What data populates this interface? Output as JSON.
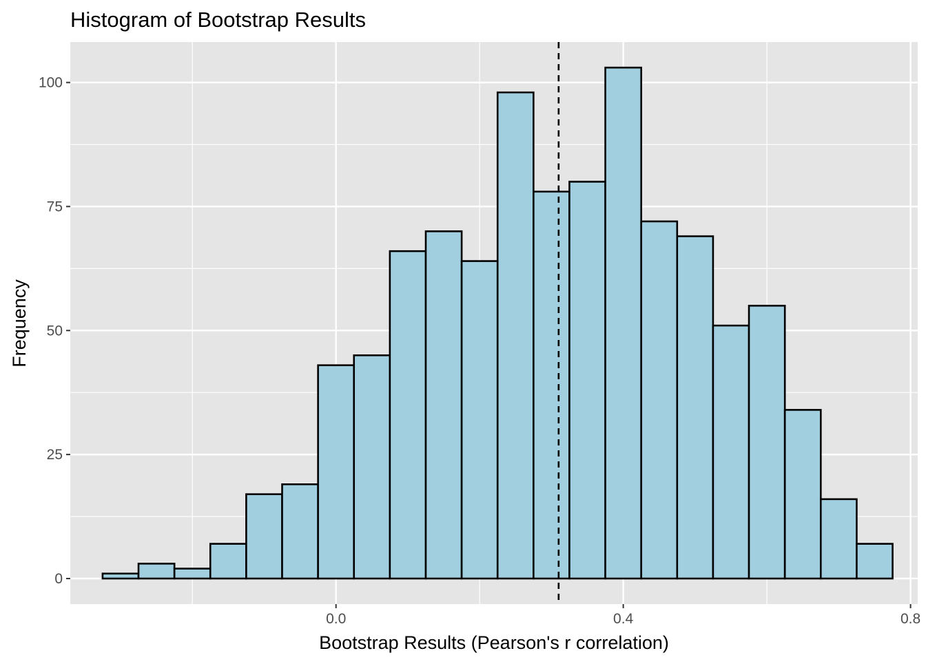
{
  "chart_data": {
    "type": "bar",
    "subtype": "histogram",
    "title": "Histogram of Bootstrap Results",
    "xlabel": "Bootstrap Results (Pearson's r correlation)",
    "ylabel": "Frequency",
    "bin_width": 0.05,
    "bins": [
      {
        "x_start": -0.325,
        "x_end": -0.275,
        "count": 1
      },
      {
        "x_start": -0.275,
        "x_end": -0.225,
        "count": 3
      },
      {
        "x_start": -0.225,
        "x_end": -0.175,
        "count": 2
      },
      {
        "x_start": -0.175,
        "x_end": -0.125,
        "count": 7
      },
      {
        "x_start": -0.125,
        "x_end": -0.075,
        "count": 17
      },
      {
        "x_start": -0.075,
        "x_end": -0.025,
        "count": 19
      },
      {
        "x_start": -0.025,
        "x_end": 0.025,
        "count": 43
      },
      {
        "x_start": 0.025,
        "x_end": 0.075,
        "count": 45
      },
      {
        "x_start": 0.075,
        "x_end": 0.125,
        "count": 66
      },
      {
        "x_start": 0.125,
        "x_end": 0.175,
        "count": 70
      },
      {
        "x_start": 0.175,
        "x_end": 0.225,
        "count": 64
      },
      {
        "x_start": 0.225,
        "x_end": 0.275,
        "count": 98
      },
      {
        "x_start": 0.275,
        "x_end": 0.325,
        "count": 78
      },
      {
        "x_start": 0.325,
        "x_end": 0.375,
        "count": 80
      },
      {
        "x_start": 0.375,
        "x_end": 0.425,
        "count": 103
      },
      {
        "x_start": 0.425,
        "x_end": 0.475,
        "count": 72
      },
      {
        "x_start": 0.475,
        "x_end": 0.525,
        "count": 69
      },
      {
        "x_start": 0.525,
        "x_end": 0.575,
        "count": 51
      },
      {
        "x_start": 0.575,
        "x_end": 0.625,
        "count": 55
      },
      {
        "x_start": 0.625,
        "x_end": 0.675,
        "count": 34
      },
      {
        "x_start": 0.675,
        "x_end": 0.725,
        "count": 16
      },
      {
        "x_start": 0.725,
        "x_end": 0.775,
        "count": 7
      }
    ],
    "reference_line": {
      "x": 0.31,
      "style": "dashed",
      "color": "#000000"
    },
    "xlim": [
      -0.37,
      0.81
    ],
    "ylim": [
      -5.15,
      108.15
    ],
    "x_ticks": [
      0.0,
      0.4,
      0.8
    ],
    "x_tick_labels": [
      "0.0",
      "0.4",
      "0.8"
    ],
    "x_minor_ticks": [
      -0.2,
      0.2,
      0.6
    ],
    "y_ticks": [
      0,
      25,
      50,
      75,
      100
    ],
    "y_tick_labels": [
      "0",
      "25",
      "50",
      "75",
      "100"
    ],
    "y_minor_ticks": [
      12.5,
      37.5,
      62.5,
      87.5
    ],
    "grid": true,
    "legend": "none",
    "colors": {
      "bar_fill": "#a2cfe0",
      "bar_stroke": "#000000",
      "panel_background": "#e5e5e5",
      "grid_line": "#ffffff",
      "tick_label": "#4d4d4d",
      "tick_mark": "#333333"
    }
  }
}
